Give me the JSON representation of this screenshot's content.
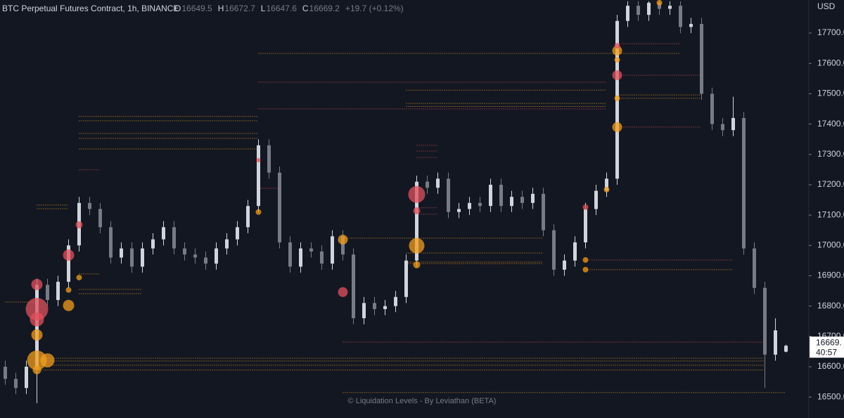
{
  "chart_data": {
    "type": "candlestick",
    "title": "BTC Perpetual Futures Contract, 1h, BINANCE",
    "ohlc_letters": [
      "O",
      "H",
      "L",
      "C"
    ],
    "change_label": "+19.7 (+0.12%)",
    "axis_unit": "USD",
    "last_price_label": "16669.",
    "countdown": "40:57",
    "watermark": "© Liquidation Levels - By Leviathan (BETA)",
    "up_color": "#d1d4dc",
    "down_color": "#787b86",
    "ylim": [
      16431,
      17809
    ],
    "yticks": [
      {
        "value": 16500,
        "label": "16500.0"
      },
      {
        "value": 16600,
        "label": "16600.0"
      },
      {
        "value": 16700,
        "label": "16700.0"
      },
      {
        "value": 16800,
        "label": "16800.0"
      },
      {
        "value": 16900,
        "label": "16900.0"
      },
      {
        "value": 17000,
        "label": "17000.0"
      },
      {
        "value": 17100,
        "label": "17100.0"
      },
      {
        "value": 17200,
        "label": "17200.0"
      },
      {
        "value": 17300,
        "label": "17300.0"
      },
      {
        "value": 17400,
        "label": "17400.0"
      },
      {
        "value": 17500,
        "label": "17500.0"
      },
      {
        "value": 17600,
        "label": "17600.0"
      },
      {
        "value": 17700,
        "label": "17700.0"
      }
    ],
    "open": [
      16600,
      16560,
      16530,
      16600,
      16870,
      16820,
      16880,
      17000,
      17140,
      17120,
      17060,
      16960,
      16990,
      16930,
      16990,
      17020,
      17060,
      16990,
      16970,
      16960,
      16940,
      16990,
      17020,
      17060,
      17130,
      17330,
      17240,
      17010,
      16930,
      16990,
      16980,
      16940,
      17030,
      16970,
      16760,
      16810,
      16790,
      16800,
      16830,
      16950,
      17210,
      17190,
      17220,
      17110,
      17120,
      17140,
      17130,
      17200,
      17130,
      17160,
      17140,
      17170,
      17050,
      16920,
      16950,
      17010,
      17120,
      17180,
      17220,
      17740,
      17790,
      17760,
      17800,
      17780,
      17790,
      17720,
      17730,
      17500,
      17400,
      17380,
      17420,
      16990,
      16860,
      16640,
      16649.5
    ],
    "high": [
      16620,
      16580,
      16620,
      16890,
      16890,
      16900,
      17020,
      17160,
      17160,
      17140,
      17080,
      17010,
      17010,
      17010,
      17040,
      17080,
      17080,
      17010,
      16990,
      16980,
      17010,
      17040,
      17080,
      17150,
      17350,
      17350,
      17260,
      17030,
      17010,
      17010,
      17000,
      17050,
      17050,
      16990,
      16830,
      16830,
      16820,
      16850,
      16970,
      17230,
      17230,
      17240,
      17240,
      17140,
      17160,
      17160,
      17220,
      17220,
      17180,
      17180,
      17190,
      17190,
      17070,
      16970,
      17030,
      17140,
      17200,
      17240,
      17760,
      17805,
      17805,
      17805,
      17805,
      17805,
      17805,
      17750,
      17750,
      17520,
      17420,
      17490,
      17440,
      17010,
      16880,
      16760,
      16672.7
    ],
    "low": [
      16540,
      16510,
      16510,
      16480,
      16800,
      16800,
      16860,
      16980,
      17100,
      17040,
      16940,
      16940,
      16910,
      16910,
      16970,
      17000,
      16970,
      16950,
      16940,
      16920,
      16920,
      16970,
      17000,
      17040,
      17110,
      17220,
      16990,
      16910,
      16910,
      16960,
      16920,
      16920,
      16950,
      16740,
      16740,
      16770,
      16770,
      16780,
      16810,
      16930,
      17170,
      17170,
      17090,
      17090,
      17100,
      17110,
      17110,
      17110,
      17110,
      17120,
      17120,
      17030,
      16900,
      16900,
      16930,
      16990,
      17100,
      17160,
      17200,
      17720,
      17740,
      17740,
      17760,
      17760,
      17700,
      17700,
      17480,
      17380,
      17360,
      17360,
      16970,
      16840,
      16530,
      16620,
      16647.6
    ],
    "close": [
      16560,
      16530,
      16600,
      16870,
      16820,
      16880,
      17000,
      17140,
      17120,
      17060,
      16960,
      16990,
      16930,
      16990,
      17020,
      17060,
      16990,
      16970,
      16960,
      16940,
      16990,
      17020,
      17060,
      17130,
      17330,
      17240,
      17010,
      16930,
      16990,
      16980,
      16940,
      17030,
      16970,
      16760,
      16810,
      16790,
      16800,
      16830,
      16950,
      17210,
      17190,
      17220,
      17110,
      17120,
      17140,
      17130,
      17200,
      17130,
      17160,
      17140,
      17170,
      17050,
      16920,
      16950,
      17010,
      17120,
      17180,
      17220,
      17740,
      17790,
      17760,
      17800,
      17780,
      17790,
      17720,
      17730,
      17500,
      17400,
      17380,
      17420,
      16990,
      16860,
      16640,
      16720,
      16669.2
    ],
    "levels": [
      {
        "color": "#f29d1e",
        "price": [
          17633,
          17425,
          17411,
          17369,
          17353,
          17318,
          17133,
          17121,
          16813,
          17024,
          16975,
          16945,
          16940,
          16920,
          16628,
          16619,
          16605,
          16589,
          16515,
          17512,
          17468,
          17458,
          17496,
          17485,
          16855,
          16841,
          16906
        ],
        "from": [
          24,
          7,
          7,
          7,
          7,
          7,
          3,
          3,
          0,
          32,
          38,
          38,
          38,
          55,
          3,
          3,
          3,
          3,
          32,
          38,
          38,
          38,
          58,
          58,
          7,
          7,
          7
        ],
        "to": [
          64,
          24,
          24,
          24,
          24,
          24,
          6,
          6,
          3,
          51,
          51,
          51,
          51,
          69,
          72,
          72,
          72,
          72,
          74,
          57,
          57,
          57,
          66,
          66,
          13,
          13,
          9
        ]
      },
      {
        "color": "#e0525c",
        "price": [
          17538,
          17450,
          17249,
          17188,
          16952,
          16681,
          17561,
          17390,
          17665,
          17330,
          17311,
          17290,
          17124,
          17103
        ],
        "from": [
          24,
          24,
          7,
          24,
          55,
          32,
          58,
          58,
          58,
          39,
          39,
          39,
          39,
          39
        ],
        "to": [
          57,
          57,
          9,
          26,
          69,
          72,
          66,
          66,
          64,
          41,
          41,
          41,
          41,
          41
        ]
      }
    ],
    "bubbles": [
      {
        "color": "#f29d1e",
        "price": [
          16705,
          16621,
          16621,
          16589,
          16802,
          16894,
          16853,
          17110,
          17019,
          16999,
          16936,
          16952,
          16920,
          17184,
          17642,
          17390,
          17485,
          17612,
          17800
        ],
        "index": [
          3,
          3,
          4,
          3,
          6,
          7,
          6,
          24,
          32,
          39,
          39,
          55,
          55,
          57,
          58,
          58,
          58,
          58,
          62
        ],
        "size": [
          8,
          14,
          10,
          6,
          8,
          4,
          4,
          4,
          7,
          11,
          5,
          4,
          4,
          4,
          7,
          7,
          4,
          4,
          4
        ]
      },
      {
        "color": "#e0525c",
        "price": [
          16790,
          16756,
          16871,
          16968,
          17068,
          17281,
          16846,
          17168,
          17114,
          17126,
          17561,
          17658
        ],
        "index": [
          3,
          3,
          3,
          6,
          7,
          24,
          32,
          39,
          39,
          55,
          58,
          58
        ],
        "size": [
          16,
          10,
          8,
          8,
          5,
          3,
          7,
          12,
          5,
          4,
          7,
          4
        ]
      }
    ]
  }
}
